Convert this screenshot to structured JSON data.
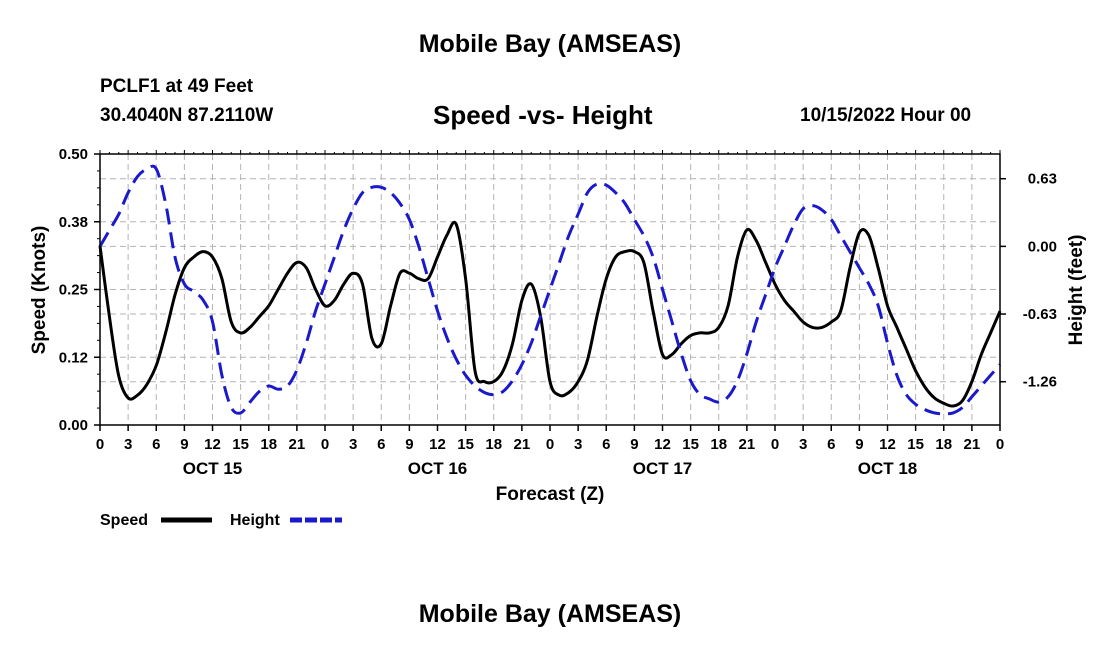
{
  "header": {
    "title": "Mobile Bay (AMSEAS)",
    "station": "PCLF1 at 49 Feet",
    "coords": "30.4040N  87.2110W",
    "subtitle": "Speed -vs- Height",
    "datetime": "10/15/2022 Hour 00"
  },
  "footer": {
    "title": "Mobile Bay (AMSEAS)"
  },
  "colors": {
    "speed": "#000000",
    "height": "#1a1acc",
    "grid": "#b4b4b4"
  },
  "chart_data": {
    "type": "line",
    "xlabel": "Forecast (Z)",
    "ylabel": "Speed (Knots)",
    "y2label": "Height (feet)",
    "x_range_hours": [
      0,
      96
    ],
    "x_tick_labels": [
      "0",
      "3",
      "6",
      "9",
      "12",
      "15",
      "18",
      "21",
      "0",
      "3",
      "6",
      "9",
      "12",
      "15",
      "18",
      "21",
      "0",
      "3",
      "6",
      "9",
      "12",
      "15",
      "18",
      "21",
      "0",
      "3",
      "6",
      "9",
      "12",
      "15",
      "18",
      "21",
      "0"
    ],
    "day_labels": [
      "OCT 15",
      "OCT 16",
      "OCT 17",
      "OCT 18"
    ],
    "ylim": [
      0,
      0.5
    ],
    "y_ticks": [
      "0.00",
      "0.12",
      "0.25",
      "0.38",
      "0.50"
    ],
    "y2lim": [
      -1.663,
      0.86
    ],
    "y2_ticks": [
      "-1.26",
      "-0.63",
      "0.00",
      "0.63"
    ],
    "grid": true,
    "legend": {
      "placement": "bottom-left",
      "speed_label": "Speed",
      "height_label": "Height"
    },
    "series": [
      {
        "name": "Speed",
        "axis": "left",
        "style": "solid",
        "x": [
          0,
          1,
          2,
          3,
          4,
          5,
          6,
          7,
          8,
          9,
          10,
          11,
          12,
          13,
          14,
          15,
          16,
          17,
          18,
          19,
          20,
          21,
          22,
          23,
          24,
          25,
          26,
          27,
          28,
          29,
          30,
          31,
          32,
          33,
          34,
          35,
          36,
          37,
          38,
          39,
          40,
          41,
          42,
          43,
          44,
          45,
          46,
          47,
          48,
          49,
          50,
          51,
          52,
          53,
          54,
          55,
          56,
          57,
          58,
          59,
          60,
          61,
          62,
          63,
          64,
          65,
          66,
          67,
          68,
          69,
          70,
          71,
          72,
          73,
          74,
          75,
          76,
          77,
          78,
          79,
          80,
          81,
          82,
          83,
          84,
          85,
          86,
          87,
          88,
          89,
          90,
          91,
          92,
          93,
          94,
          95,
          96
        ],
        "values": [
          0.33,
          0.2,
          0.09,
          0.05,
          0.055,
          0.075,
          0.11,
          0.17,
          0.24,
          0.29,
          0.31,
          0.32,
          0.31,
          0.27,
          0.19,
          0.17,
          0.18,
          0.2,
          0.22,
          0.25,
          0.28,
          0.3,
          0.29,
          0.25,
          0.22,
          0.23,
          0.26,
          0.28,
          0.26,
          0.16,
          0.15,
          0.22,
          0.28,
          0.28,
          0.27,
          0.27,
          0.31,
          0.35,
          0.37,
          0.27,
          0.1,
          0.08,
          0.08,
          0.1,
          0.15,
          0.23,
          0.26,
          0.2,
          0.08,
          0.055,
          0.06,
          0.08,
          0.12,
          0.2,
          0.27,
          0.31,
          0.32,
          0.32,
          0.3,
          0.21,
          0.13,
          0.13,
          0.15,
          0.165,
          0.17,
          0.17,
          0.18,
          0.22,
          0.31,
          0.36,
          0.34,
          0.3,
          0.26,
          0.23,
          0.21,
          0.19,
          0.18,
          0.18,
          0.19,
          0.21,
          0.29,
          0.355,
          0.35,
          0.29,
          0.22,
          0.18,
          0.14,
          0.1,
          0.07,
          0.05,
          0.04,
          0.035,
          0.045,
          0.08,
          0.13,
          0.17,
          0.21
        ]
      },
      {
        "name": "Height",
        "axis": "right",
        "style": "dashed",
        "x": [
          0,
          1,
          2,
          3,
          4,
          5,
          6,
          7,
          8,
          9,
          10,
          11,
          12,
          13,
          14,
          15,
          16,
          17,
          18,
          19,
          20,
          21,
          22,
          23,
          24,
          25,
          26,
          27,
          28,
          29,
          30,
          31,
          32,
          33,
          34,
          35,
          36,
          37,
          38,
          39,
          40,
          41,
          42,
          43,
          44,
          45,
          46,
          47,
          48,
          49,
          50,
          51,
          52,
          53,
          54,
          55,
          56,
          57,
          58,
          59,
          60,
          61,
          62,
          63,
          64,
          65,
          66,
          67,
          68,
          69,
          70,
          71,
          72,
          73,
          74,
          75,
          76,
          77,
          78,
          79,
          80,
          81,
          82,
          83,
          84,
          85,
          86,
          87,
          88,
          89,
          90,
          91,
          92,
          93,
          94,
          95,
          96
        ],
        "values": [
          0.0,
          0.15,
          0.3,
          0.5,
          0.65,
          0.72,
          0.72,
          0.4,
          -0.1,
          -0.35,
          -0.42,
          -0.5,
          -0.7,
          -1.2,
          -1.5,
          -1.55,
          -1.45,
          -1.35,
          -1.3,
          -1.33,
          -1.3,
          -1.15,
          -0.9,
          -0.6,
          -0.35,
          -0.1,
          0.15,
          0.35,
          0.5,
          0.55,
          0.55,
          0.5,
          0.4,
          0.25,
          0.0,
          -0.3,
          -0.6,
          -0.85,
          -1.05,
          -1.2,
          -1.3,
          -1.36,
          -1.38,
          -1.35,
          -1.25,
          -1.1,
          -0.9,
          -0.65,
          -0.4,
          -0.15,
          0.1,
          0.3,
          0.5,
          0.58,
          0.57,
          0.5,
          0.4,
          0.25,
          0.1,
          -0.1,
          -0.4,
          -0.7,
          -1.0,
          -1.25,
          -1.38,
          -1.42,
          -1.45,
          -1.4,
          -1.25,
          -1.0,
          -0.7,
          -0.45,
          -0.2,
          0.0,
          0.2,
          0.35,
          0.38,
          0.34,
          0.25,
          0.1,
          -0.05,
          -0.2,
          -0.35,
          -0.55,
          -0.9,
          -1.2,
          -1.38,
          -1.47,
          -1.52,
          -1.55,
          -1.56,
          -1.55,
          -1.5,
          -1.4,
          -1.3,
          -1.2,
          -1.1
        ]
      }
    ]
  }
}
